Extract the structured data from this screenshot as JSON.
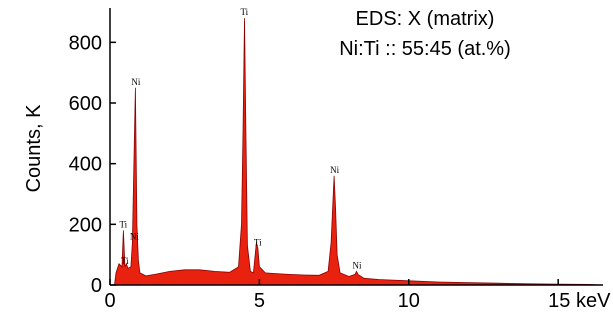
{
  "chart_data": {
    "type": "area",
    "title": "EDS: X (matrix)",
    "subtitle": "Ni:Ti :: 55:45 (at.%)",
    "xlabel": "",
    "ylabel": "Counts, K",
    "x_unit_label": "15 keV",
    "xlim": [
      0,
      16.5
    ],
    "ylim": [
      0,
      900
    ],
    "x_ticks": [
      0,
      5,
      10,
      15
    ],
    "x_tick_labels": [
      "0",
      "5",
      "10",
      "15 keV"
    ],
    "y_ticks": [
      0,
      200,
      400,
      600,
      800
    ],
    "y_tick_labels": [
      "0",
      "200",
      "400",
      "600",
      "800"
    ],
    "grid": false,
    "fill_color": "#e8220f",
    "line_color": "#8b0000",
    "series": [
      {
        "values": [
          [
            0.15,
            0
          ],
          [
            0.2,
            40
          ],
          [
            0.3,
            70
          ],
          [
            0.4,
            60
          ],
          [
            0.45,
            180
          ],
          [
            0.5,
            60
          ],
          [
            0.55,
            70
          ],
          [
            0.6,
            55
          ],
          [
            0.7,
            60
          ],
          [
            0.75,
            140
          ],
          [
            0.8,
            400
          ],
          [
            0.85,
            650
          ],
          [
            0.9,
            200
          ],
          [
            0.95,
            80
          ],
          [
            1.0,
            40
          ],
          [
            1.2,
            30
          ],
          [
            1.5,
            35
          ],
          [
            2.0,
            45
          ],
          [
            2.5,
            50
          ],
          [
            3.0,
            50
          ],
          [
            3.5,
            45
          ],
          [
            4.0,
            42
          ],
          [
            4.3,
            60
          ],
          [
            4.4,
            200
          ],
          [
            4.45,
            500
          ],
          [
            4.5,
            880
          ],
          [
            4.55,
            500
          ],
          [
            4.6,
            130
          ],
          [
            4.7,
            45
          ],
          [
            4.8,
            40
          ],
          [
            4.9,
            140
          ],
          [
            4.95,
            120
          ],
          [
            5.0,
            60
          ],
          [
            5.2,
            40
          ],
          [
            5.5,
            38
          ],
          [
            6.0,
            35
          ],
          [
            6.5,
            33
          ],
          [
            7.0,
            32
          ],
          [
            7.3,
            45
          ],
          [
            7.4,
            140
          ],
          [
            7.45,
            250
          ],
          [
            7.5,
            360
          ],
          [
            7.55,
            250
          ],
          [
            7.6,
            100
          ],
          [
            7.7,
            40
          ],
          [
            8.0,
            28
          ],
          [
            8.2,
            35
          ],
          [
            8.25,
            45
          ],
          [
            8.3,
            35
          ],
          [
            8.5,
            22
          ],
          [
            9.0,
            18
          ],
          [
            10.0,
            14
          ],
          [
            11.0,
            10
          ],
          [
            12.0,
            8
          ],
          [
            13.0,
            6
          ],
          [
            14.0,
            4
          ],
          [
            15.0,
            3
          ],
          [
            16.0,
            2
          ],
          [
            16.5,
            0
          ]
        ]
      }
    ],
    "annotations": [
      {
        "text": "Ti",
        "x": 4.5,
        "y": 880
      },
      {
        "text": "Ni",
        "x": 0.85,
        "y": 650
      },
      {
        "text": "Ni",
        "x": 7.5,
        "y": 360
      },
      {
        "text": "Ti",
        "x": 0.45,
        "y": 180
      },
      {
        "text": "Ni",
        "x": 0.8,
        "y": 140
      },
      {
        "text": "Ti",
        "x": 4.95,
        "y": 120
      },
      {
        "text": "Ti",
        "x": 0.5,
        "y": 60
      },
      {
        "text": "Ni",
        "x": 8.25,
        "y": 45
      }
    ]
  }
}
